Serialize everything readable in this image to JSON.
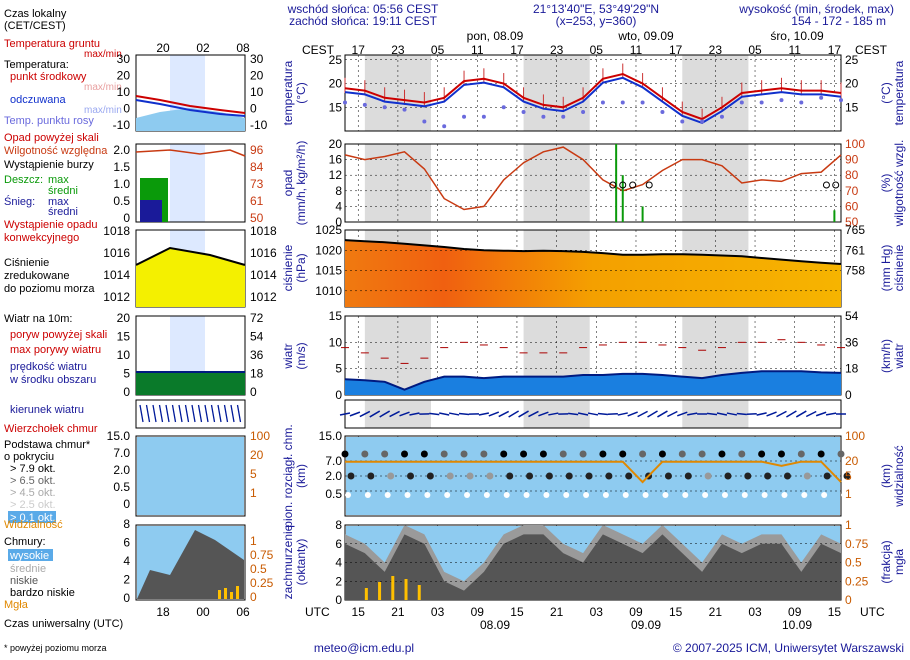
{
  "header": {
    "sunrise": "wschód słońca: 05:56 CEST",
    "sunset": "zachód słońca: 19:11 CEST",
    "coords": "21°13'40\"E, 53°49'29\"N",
    "grid": "(x=253, y=360)",
    "height_label": "wysokość (min, środek, max)",
    "height_values": "154 - 172 - 185 m",
    "footer_note": "* powyżej poziomu morza",
    "email": "meteo@icm.edu.pl",
    "copyright": "© 2007-2025 ICM, Uniwersytet Warszawski"
  },
  "time_axes": {
    "local_label": "Czas lokalny (CET/CEST)",
    "local_line1": "Czas lokalny",
    "local_line2": "(CET/CEST)",
    "cest": "CEST",
    "utc": "UTC",
    "utc_label": "Czas uniwersalny (UTC)",
    "legend_top_ticks": [
      "20",
      "02",
      "08"
    ],
    "legend_bottom_ticks": [
      "18",
      "00",
      "06"
    ],
    "top_ticks": [
      "17",
      "23",
      "05",
      "11",
      "17",
      "23",
      "05",
      "11",
      "17",
      "23",
      "05",
      "11",
      "17"
    ],
    "bottom_ticks": [
      "15",
      "21",
      "03",
      "09",
      "15",
      "21",
      "03",
      "09",
      "15",
      "21",
      "03",
      "09",
      "15"
    ],
    "days": [
      "pon, 08.09",
      "wto, 09.09",
      "śro, 10.09"
    ],
    "dates_bottom": [
      "08.09",
      "09.09",
      "10.09"
    ]
  },
  "legend": {
    "temp": {
      "ground": "Temperatura gruntu",
      "ground_sub": "max/min",
      "title": "Temperatura:",
      "mid": "punkt środkowy",
      "maxmin": "max/min",
      "felt": "odczuwana",
      "felt_maxmin": "max/min",
      "dew": "Temp. punktu rosy",
      "left_ticks": [
        "30",
        "20",
        "10",
        "0",
        "-10"
      ],
      "right_ticks": [
        "30",
        "20",
        "10",
        "0",
        "-10"
      ]
    },
    "precip": {
      "over": "Opad powyżej skali",
      "humidity": "Wilgotność względna",
      "storm": "Wystąpienie burzy",
      "rain": "Deszcz:",
      "rain_max": "max",
      "rain_mean": "średni",
      "snow": "Śnieg:",
      "snow_max": "max",
      "snow_mean": "średni",
      "occ1": "Wystąpienie opadu",
      "occ2": "konwekcyjnego",
      "left_ticks": [
        "2.0",
        "1.5",
        "1.0",
        "0.5",
        "0"
      ],
      "right_ticks": [
        "96",
        "84",
        "73",
        "61",
        "50"
      ]
    },
    "pressure": {
      "line1": "Ciśnienie",
      "line2": "zredukowane",
      "line3": "do poziomu morza",
      "left_ticks": [
        "1018",
        "1016",
        "1014",
        "1012"
      ],
      "right_ticks": [
        "1018",
        "1016",
        "1014",
        "1012"
      ]
    },
    "wind": {
      "title": "Wiatr na 10m:",
      "gust_over": "poryw powyżej skali",
      "gust_max": "max porywy wiatru",
      "mean1": "prędkość wiatru",
      "mean2": "w środku obszaru",
      "left_ticks": [
        "20",
        "15",
        "10",
        "5",
        "0"
      ],
      "right_ticks": [
        "72",
        "54",
        "36",
        "18",
        "0"
      ]
    },
    "winddir": {
      "label": "kierunek wiatru"
    },
    "clouds": {
      "top": "Wierzchołek chmur",
      "base1": "Podstawa chmur*",
      "base2": "o pokryciu",
      "c79": "> 7.9 okt.",
      "c65": "> 6.5 okt.",
      "c45": "> 4.5 okt.",
      "c25": "> 2.5 okt.",
      "c01": "> 0.1 okt.",
      "vis": "Widzialność",
      "left_ticks": [
        "15.0",
        "7.0",
        "2.0",
        "0.5",
        "0"
      ],
      "right_ticks": [
        "100",
        "20",
        "5",
        "1"
      ]
    },
    "cover": {
      "title": "Chmury:",
      "high": "wysokie",
      "mid": "średnie",
      "low": "niskie",
      "vlow": "bardzo niskie",
      "fog": "Mgła",
      "left_ticks": [
        "8",
        "6",
        "4",
        "2",
        "0"
      ],
      "right_ticks": [
        "1",
        "0.75",
        "0.5",
        "0.25",
        "0"
      ]
    }
  },
  "panels": {
    "temp": {
      "left_unit": "temperatura",
      "left_unit2": "(°C)",
      "right_unit": "temperatura",
      "right_unit2": "(°C)",
      "ticks": [
        "25",
        "20",
        "15"
      ]
    },
    "precip": {
      "left_unit": "opad",
      "left_unit2": "(mm/h, kg/m²/h)",
      "right_unit": "wilgotność wzgl.",
      "right_unit2": "(%)",
      "ticks_left": [
        "20",
        "16",
        "12",
        "8",
        "4",
        "0"
      ],
      "ticks_right": [
        "100",
        "90",
        "80",
        "70",
        "60",
        "50"
      ]
    },
    "pressure": {
      "left_unit": "ciśnienie",
      "left_unit2": "(hPa)",
      "right_unit": "ciśnienie",
      "right_unit2": "(mm Hg)",
      "ticks_left": [
        "1025",
        "1020",
        "1015",
        "1010"
      ],
      "ticks_right": [
        "765",
        "761",
        "758"
      ]
    },
    "wind": {
      "left_unit": "wiatr",
      "left_unit2": "(m/s)",
      "right_unit": "wiatr",
      "right_unit2": "(km/h)",
      "ticks_left": [
        "15",
        "10",
        "5",
        "0"
      ],
      "ticks_right": [
        "54",
        "36",
        "18",
        "0"
      ]
    },
    "clouds": {
      "left_unit": "pion. rozciągł. chm.",
      "left_unit2": "(km)",
      "right_unit": "widzialność",
      "right_unit2": "(km)",
      "ticks_left": [
        "15.0",
        "7.0",
        "2.0",
        "0.5"
      ],
      "ticks_right": [
        "100",
        "20",
        "5",
        "1"
      ]
    },
    "cover": {
      "left_unit": "zachmurzenie",
      "left_unit2": "(oktanty)",
      "right_unit": "mgła",
      "right_unit2": "(frakcja)",
      "ticks_left": [
        "8",
        "6",
        "4",
        "2",
        "0"
      ],
      "ticks_right": [
        "1",
        "0.75",
        "0.5",
        "0.25",
        "0"
      ]
    }
  },
  "colors": {
    "temp": "#cc0000",
    "felt": "#1030cc",
    "dew": "#6a6add",
    "humidity": "#c83a12",
    "pressure_fill": "#f0a000",
    "wind_fill": "#1a7fe0",
    "cloud_bg": "#8ecbf0",
    "night": "#dcdcdc"
  },
  "chart_data": {
    "type": "meteogram",
    "hours": [
      0,
      3,
      6,
      9,
      12,
      15,
      18,
      21,
      24,
      27,
      30,
      33,
      36,
      39,
      42,
      45,
      48,
      51,
      54,
      57,
      60,
      63,
      66,
      69,
      72,
      75
    ],
    "temperature_c": [
      19,
      18.5,
      17,
      16.5,
      16,
      17,
      20.5,
      21,
      20,
      17,
      15.5,
      15,
      17,
      21,
      22,
      20,
      17,
      14,
      12.5,
      15,
      18,
      18.5,
      19,
      18.5,
      18.5,
      18
    ],
    "dewpoint_c": [
      16,
      15.5,
      15,
      14.5,
      12,
      11,
      13,
      13,
      15,
      14,
      13,
      13,
      14,
      16,
      16,
      16,
      14,
      12,
      12,
      13,
      16,
      16,
      16.5,
      16,
      17,
      16.5
    ],
    "humidity_pct": [
      93,
      90,
      92,
      95,
      84,
      65,
      58,
      60,
      77,
      88,
      95,
      98,
      90,
      77,
      70,
      74,
      83,
      90,
      90,
      86,
      75,
      77,
      76,
      81,
      82,
      93
    ],
    "pressure_hpa": [
      1022.5,
      1022.2,
      1022.0,
      1021.6,
      1021.2,
      1020.8,
      1020.3,
      1020.0,
      1019.9,
      1019.8,
      1019.9,
      1019.8,
      1019.6,
      1019.3,
      1018.9,
      1018.9,
      1019.0,
      1019.0,
      1018.9,
      1018.7,
      1018.5,
      1018.1,
      1017.7,
      1017.3,
      1016.9,
      1016.6
    ],
    "wind_mean_ms": [
      3,
      2.8,
      2.5,
      1,
      2.5,
      3.5,
      3.5,
      3.2,
      3.5,
      3.5,
      3.5,
      3.5,
      3.8,
      3.8,
      4,
      4,
      3.8,
      3.5,
      3.2,
      3.8,
      4.2,
      4.5,
      4.5,
      4.5,
      4.3,
      4.2
    ],
    "wind_gust_ms": [
      9,
      8,
      7,
      6,
      7,
      9,
      10,
      9.5,
      9,
      8,
      8,
      8,
      9,
      9.5,
      10,
      10,
      9.5,
      9,
      8.5,
      9,
      10,
      10,
      10.5,
      10,
      9.5,
      9
    ],
    "precip_mm_h": [
      0,
      0,
      0,
      0,
      0,
      0,
      0,
      0,
      0,
      0,
      0,
      0,
      0,
      0,
      0,
      0,
      0,
      0,
      0,
      0,
      0,
      0,
      0,
      0,
      0,
      0
    ],
    "precip_peaks": [
      {
        "hour": 41,
        "value": 20
      },
      {
        "hour": 42,
        "value": 12
      },
      {
        "hour": 45,
        "value": 4
      },
      {
        "hour": 74,
        "value": 3
      }
    ],
    "cloud_cover_octants": [
      6,
      5,
      3,
      7,
      6,
      2,
      1,
      3,
      6,
      7,
      7,
      5,
      4,
      7,
      6,
      5,
      7,
      5,
      3,
      6,
      5,
      6,
      6,
      3,
      6,
      5
    ],
    "visibility_km": [
      20,
      20,
      20,
      20,
      20,
      20,
      20,
      20,
      20,
      20,
      20,
      20,
      20,
      20,
      20,
      5,
      20,
      20,
      20,
      20,
      20,
      20,
      15,
      20,
      20,
      5
    ]
  }
}
